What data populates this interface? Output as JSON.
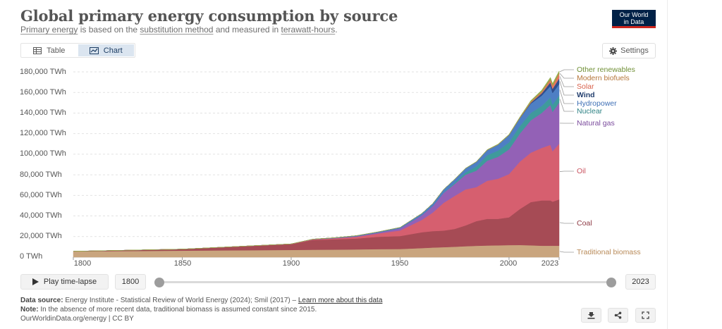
{
  "header": {
    "title": "Global primary energy consumption by source",
    "subtitle_parts": {
      "primary_energy": "Primary energy",
      "middle1": " is based on the ",
      "substitution_method": "substitution method",
      "middle2": " and measured in ",
      "terawatt_hours": "terawatt-hours",
      "end": "."
    }
  },
  "logo": {
    "line1": "Our World",
    "line2": "in Data",
    "background": "#002147",
    "stripe": "#ce261e"
  },
  "tabs": {
    "table_label": "Table",
    "chart_label": "Chart",
    "active": "Chart"
  },
  "settings_label": "Settings",
  "controls": {
    "play_label": "Play time-lapse",
    "start_year": "1800",
    "end_year": "2023"
  },
  "footer": {
    "source_label": "Data source:",
    "source_text": " Energy Institute - Statistical Review of World Energy (2024); Smil (2017) – ",
    "learn_more": "Learn more about this data",
    "note_label": "Note:",
    "note_text": " In the absence of more recent data, traditional biomass is assumed constant since 2015.",
    "credit": "OurWorldinData.org/energy | CC BY"
  },
  "chart_data": {
    "type": "area",
    "stacked": true,
    "x_tick_labels": [
      "1800",
      "1850",
      "1900",
      "1950",
      "2000",
      "2023"
    ],
    "x_ticks": [
      1800,
      1850,
      1900,
      1950,
      2000,
      2023
    ],
    "y_tick_labels": [
      "0 TWh",
      "20,000 TWh",
      "40,000 TWh",
      "60,000 TWh",
      "80,000 TWh",
      "100,000 TWh",
      "120,000 TWh",
      "140,000 TWh",
      "160,000 TWh",
      "180,000 TWh"
    ],
    "y_ticks": [
      0,
      20000,
      40000,
      60000,
      80000,
      100000,
      120000,
      140000,
      160000,
      180000
    ],
    "ylim": [
      0,
      180000
    ],
    "xlim": [
      1800,
      2023
    ],
    "grid": "horizontal dashed",
    "legend_placement": "right, inline labels",
    "x": [
      1800,
      1850,
      1900,
      1910,
      1920,
      1930,
      1940,
      1950,
      1960,
      1965,
      1970,
      1975,
      1980,
      1985,
      1990,
      1995,
      2000,
      2005,
      2010,
      2015,
      2019,
      2020,
      2023
    ],
    "series": [
      {
        "name": "Traditional biomass",
        "color": "#c9a57e",
        "values": [
          5600,
          6300,
          7000,
          7200,
          7300,
          7500,
          7800,
          7900,
          8800,
          9300,
          9700,
          10100,
          10600,
          11000,
          11300,
          11500,
          11700,
          11800,
          11500,
          11100,
          11100,
          11100,
          11100
        ]
      },
      {
        "name": "Coal",
        "color": "#a64b55",
        "values": [
          100,
          1500,
          5600,
          9500,
          10000,
          10600,
          12000,
          12600,
          15400,
          16000,
          16100,
          17300,
          20200,
          24000,
          25900,
          25700,
          27000,
          35000,
          42000,
          44000,
          44000,
          42800,
          45000
        ]
      },
      {
        "name": "Oil",
        "color": "#d65f6f",
        "values": [
          0,
          0,
          200,
          500,
          1000,
          1700,
          3200,
          5400,
          12000,
          18000,
          27000,
          32000,
          35000,
          33000,
          37000,
          39000,
          42000,
          46000,
          48000,
          51000,
          54000,
          49000,
          54000
        ]
      },
      {
        "name": "Natural gas",
        "color": "#9361b6",
        "values": [
          0,
          0,
          70,
          200,
          300,
          600,
          900,
          2100,
          4500,
          6300,
          9600,
          11600,
          14200,
          16000,
          19500,
          21300,
          24000,
          27300,
          31400,
          34000,
          38800,
          38200,
          40000
        ]
      },
      {
        "name": "Nuclear",
        "color": "#3f9a9c",
        "values": [
          0,
          0,
          0,
          0,
          0,
          0,
          0,
          0,
          0,
          100,
          300,
          1100,
          2200,
          4100,
          5300,
          6100,
          6800,
          7300,
          7200,
          6800,
          7300,
          7000,
          7000
        ]
      },
      {
        "name": "Hydropower",
        "color": "#4e7fc4",
        "values": [
          0,
          0,
          0,
          100,
          300,
          500,
          700,
          900,
          1800,
          2400,
          3100,
          3500,
          4000,
          4500,
          5000,
          5700,
          7000,
          7600,
          9000,
          10000,
          11000,
          11400,
          11000
        ]
      },
      {
        "name": "Wind",
        "color": "#2f4e8e",
        "values": [
          0,
          0,
          0,
          0,
          0,
          0,
          0,
          0,
          0,
          0,
          0,
          0,
          0,
          0,
          10,
          20,
          80,
          260,
          900,
          2200,
          3600,
          4000,
          5500
        ]
      },
      {
        "name": "Solar",
        "color": "#e8765f",
        "values": [
          0,
          0,
          0,
          0,
          0,
          0,
          0,
          0,
          0,
          0,
          0,
          0,
          0,
          0,
          0,
          0,
          5,
          10,
          90,
          650,
          1800,
          2200,
          3900
        ]
      },
      {
        "name": "Modern biofuels",
        "color": "#c6884c",
        "values": [
          0,
          0,
          0,
          0,
          0,
          0,
          0,
          0,
          0,
          0,
          0,
          0,
          30,
          80,
          150,
          170,
          260,
          440,
          1250,
          1450,
          1700,
          1600,
          1900
        ]
      },
      {
        "name": "Other renewables",
        "color": "#8fb04b",
        "values": [
          0,
          0,
          0,
          0,
          0,
          0,
          0,
          0,
          0,
          0,
          0,
          50,
          100,
          150,
          300,
          350,
          400,
          500,
          750,
          1000,
          1300,
          1400,
          1400
        ]
      }
    ],
    "label_colors": {
      "Traditional biomass": "#b88a58",
      "Coal": "#8e3a44",
      "Oil": "#c9525f",
      "Natural gas": "#7a4a9c",
      "Nuclear": "#2f8385",
      "Hydropower": "#3e6fb5",
      "Wind": "#24406f",
      "Solar": "#d8604a",
      "Modern biofuels": "#b5763a",
      "Other renewables": "#6f8f35"
    }
  }
}
